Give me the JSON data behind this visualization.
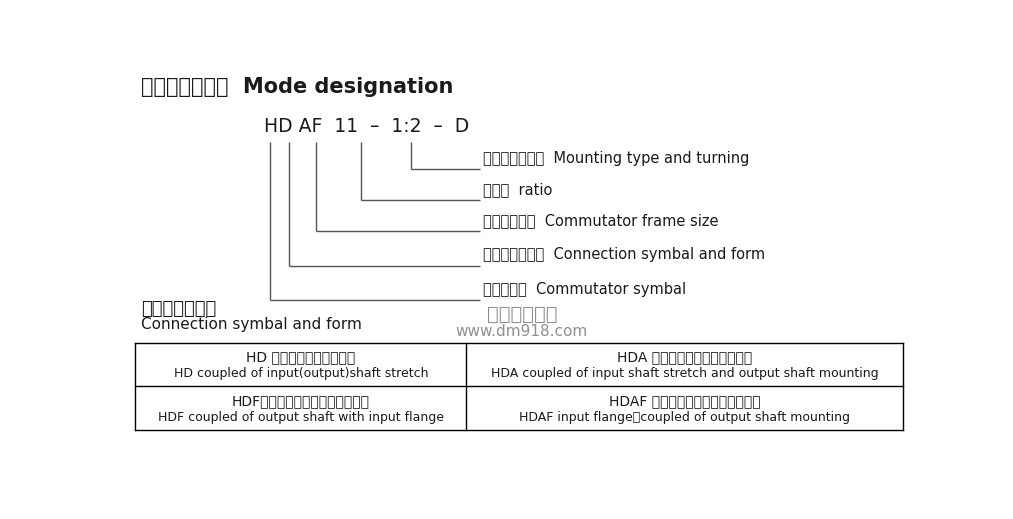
{
  "title_cn": "二、型号表示法",
  "title_en": "  Mode designation",
  "model_string": "HD AF  11  –  1:2  –  D",
  "watermark_line1": "上海典迈传动",
  "watermark_line2": "www.dm918.com",
  "section_label_cn": "联接代号及形式",
  "section_label_en": "Connection symbal and form",
  "annotations": [
    "装配形式及旋向  Mounting type and turning",
    "传动比  ratio",
    "换向器机型号  Commutator frame size",
    "联接代号及形式  Connection symbal and form",
    "换向器代号  Commutator symbal"
  ],
  "table_rows": [
    [
      "HD 输入、输出轴伸式联接",
      "HD coupled of input(output)shaft stretch",
      "HDA 输入轴伸、输出轴装式联接",
      "HDA coupled of input shaft stretch and output shaft mounting"
    ],
    [
      "HDF带输入法兰、输出轴伸式联接",
      "HDF coupled of output shaft with input flange",
      "HDAF 带输入法兰、输出轴装式联接",
      "HDAF input flange、coupled of output shaft mounting"
    ]
  ],
  "bg_color": "#ffffff",
  "text_color": "#1a1a1a",
  "line_color": "#555555",
  "watermark_color": "#909090"
}
